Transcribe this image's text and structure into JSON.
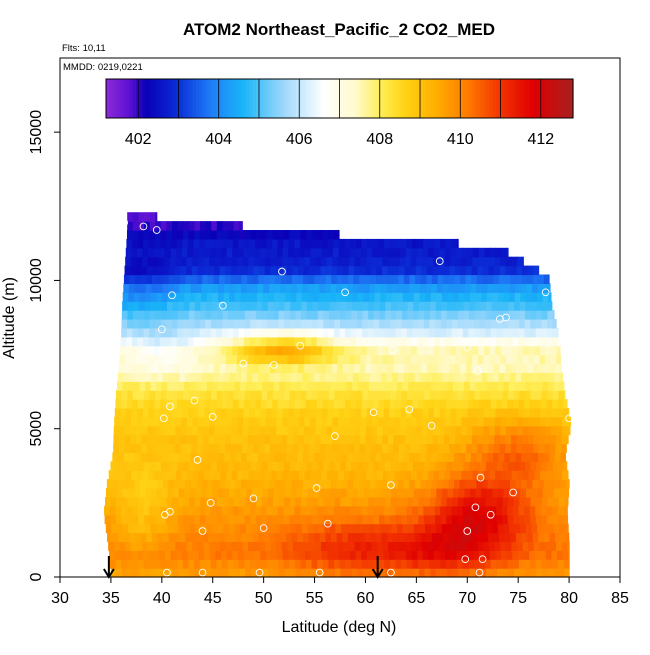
{
  "chart_data": {
    "type": "heatmap",
    "title": "ATOM2 Northeast_Pacific_2 CO2_MED",
    "annotations": {
      "flights": "Flts: 10,11",
      "dates": "MMDD: 0219,0221"
    },
    "xlabel": "Latitude (deg N)",
    "ylabel": "Altitude (m)",
    "xlim": [
      30,
      85
    ],
    "ylim": [
      0,
      17500
    ],
    "x_ticks": [
      30,
      35,
      40,
      45,
      50,
      55,
      60,
      65,
      70,
      75,
      80,
      85
    ],
    "y_ticks": [
      0,
      5000,
      10000,
      15000
    ],
    "colorbar": {
      "range": [
        401.2,
        412.8
      ],
      "ticks": [
        402,
        404,
        406,
        408,
        410,
        412
      ],
      "stops": [
        {
          "v": 401.2,
          "c": "#8e2bd8"
        },
        {
          "v": 401.8,
          "c": "#5a10d2"
        },
        {
          "v": 402.2,
          "c": "#0a00b8"
        },
        {
          "v": 403.0,
          "c": "#0b2fd8"
        },
        {
          "v": 403.8,
          "c": "#1f7df7"
        },
        {
          "v": 404.6,
          "c": "#19b5f8"
        },
        {
          "v": 405.6,
          "c": "#9cd7fb"
        },
        {
          "v": 406.6,
          "c": "#ffffff"
        },
        {
          "v": 407.4,
          "c": "#fffacd"
        },
        {
          "v": 408.0,
          "c": "#ffef5a"
        },
        {
          "v": 408.6,
          "c": "#ffd416"
        },
        {
          "v": 409.4,
          "c": "#ffae00"
        },
        {
          "v": 410.2,
          "c": "#ff7a00"
        },
        {
          "v": 411.0,
          "c": "#f23300"
        },
        {
          "v": 411.8,
          "c": "#e00000"
        },
        {
          "v": 412.8,
          "c": "#a82020"
        }
      ]
    },
    "domain_profile": [
      [
        0,
        35.0,
        80.0
      ],
      [
        1000,
        34.7,
        80.0
      ],
      [
        2000,
        34.3,
        79.8
      ],
      [
        3000,
        34.6,
        80.0
      ],
      [
        4000,
        35.2,
        79.6
      ],
      [
        5000,
        35.3,
        80.2
      ],
      [
        6000,
        35.5,
        79.6
      ],
      [
        7000,
        35.8,
        79.2
      ],
      [
        8000,
        36.0,
        79.0
      ],
      [
        9000,
        36.1,
        78.3
      ],
      [
        10000,
        36.3,
        78.0
      ],
      [
        11000,
        36.5,
        73.0
      ],
      [
        11500,
        36.6,
        53.5
      ],
      [
        12000,
        36.6,
        39.5
      ]
    ],
    "field_layers": [
      [
        0,
        409.6
      ],
      [
        800,
        410.2
      ],
      [
        2000,
        409.8
      ],
      [
        3500,
        409.2
      ],
      [
        4600,
        409.0
      ],
      [
        5500,
        408.7
      ],
      [
        6300,
        408.2
      ],
      [
        7000,
        407.5
      ],
      [
        7600,
        407.6
      ],
      [
        8300,
        406.1
      ],
      [
        9100,
        405.0
      ],
      [
        9800,
        404.2
      ],
      [
        10400,
        402.8
      ],
      [
        11200,
        402.6
      ],
      [
        12100,
        401.8
      ]
    ],
    "anomalies": [
      {
        "lat": 71,
        "alt": 2200,
        "dlat": 5,
        "dalt": 1300,
        "dv": 2.0
      },
      {
        "lat": 67,
        "alt": 900,
        "dlat": 6,
        "dalt": 900,
        "dv": 1.2
      },
      {
        "lat": 58,
        "alt": 1000,
        "dlat": 6,
        "dalt": 1100,
        "dv": 0.9
      },
      {
        "lat": 75,
        "alt": 4200,
        "dlat": 5,
        "dalt": 1200,
        "dv": 1.3
      },
      {
        "lat": 38,
        "alt": 2200,
        "dlat": 3,
        "dalt": 1600,
        "dv": -0.8
      },
      {
        "lat": 52,
        "alt": 7700,
        "dlat": 5,
        "dalt": 550,
        "dv": 2.0
      },
      {
        "lat": 40,
        "alt": 7600,
        "dlat": 4,
        "dalt": 800,
        "dv": -0.8
      },
      {
        "lat": 38,
        "alt": 9700,
        "dlat": 3,
        "dalt": 1200,
        "dv": -0.6
      }
    ],
    "sample_points": [
      [
        36.3,
        11950
      ],
      [
        38.2,
        11820
      ],
      [
        39.5,
        11700
      ],
      [
        41.0,
        9500
      ],
      [
        40.0,
        8350
      ],
      [
        46.0,
        9150
      ],
      [
        51.8,
        10300
      ],
      [
        58.0,
        9600
      ],
      [
        67.3,
        10650
      ],
      [
        77.7,
        9600
      ],
      [
        73.2,
        8700
      ],
      [
        73.8,
        8750
      ],
      [
        53.6,
        7800
      ],
      [
        48.0,
        7200
      ],
      [
        51.0,
        7150
      ],
      [
        62.7,
        7650
      ],
      [
        70.0,
        7750
      ],
      [
        71.0,
        6950
      ],
      [
        43.2,
        5950
      ],
      [
        40.8,
        5750
      ],
      [
        40.2,
        5350
      ],
      [
        45.0,
        5400
      ],
      [
        60.8,
        5550
      ],
      [
        64.3,
        5650
      ],
      [
        66.5,
        5100
      ],
      [
        80.0,
        5350
      ],
      [
        57.0,
        4750
      ],
      [
        43.5,
        3950
      ],
      [
        71.3,
        3350
      ],
      [
        62.5,
        3100
      ],
      [
        55.2,
        3000
      ],
      [
        74.5,
        2850
      ],
      [
        49.0,
        2650
      ],
      [
        44.8,
        2500
      ],
      [
        40.8,
        2200
      ],
      [
        40.3,
        2100
      ],
      [
        70.8,
        2350
      ],
      [
        72.3,
        2100
      ],
      [
        56.3,
        1800
      ],
      [
        50.0,
        1650
      ],
      [
        44.0,
        1550
      ],
      [
        70.0,
        1550
      ],
      [
        80.5,
        1150
      ],
      [
        69.8,
        600
      ],
      [
        71.5,
        600
      ],
      [
        71.2,
        150
      ],
      [
        40.5,
        150
      ],
      [
        44.0,
        150
      ],
      [
        49.6,
        150
      ],
      [
        55.5,
        150
      ],
      [
        62.5,
        150
      ]
    ],
    "flight_markers": [
      34.8,
      61.2
    ]
  }
}
